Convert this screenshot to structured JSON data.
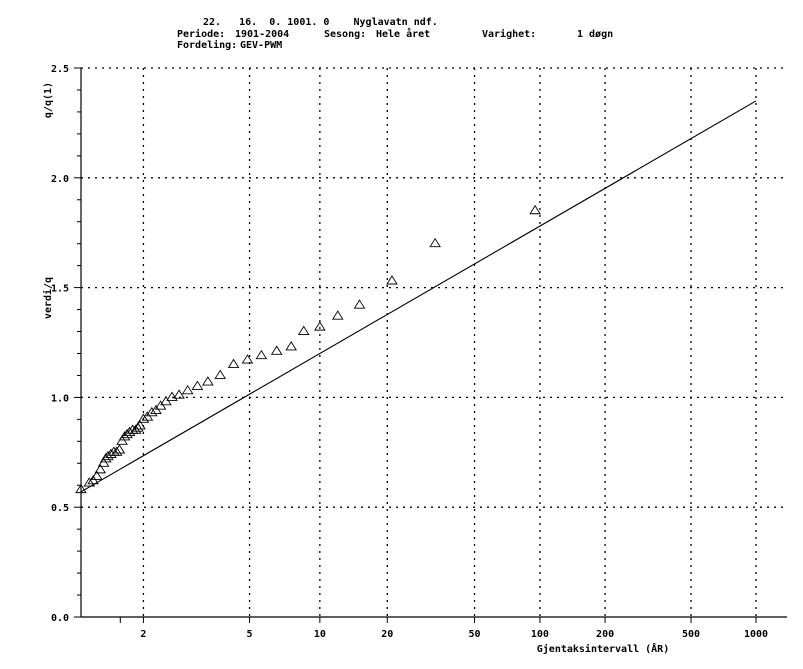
{
  "header": {
    "line1": "22.   16.  0. 1001. 0    Nyglavatn ndf.",
    "periode_label": "Periode:",
    "periode_value": "1901-2004",
    "sesong_label": "Sesong:",
    "sesong_value": "Hele året",
    "varighet_label": "Varighet:",
    "varighet_value": "1 døgn",
    "fordeling_label": "Fordeling:",
    "fordeling_value": "GEV-PWM"
  },
  "chart_data": {
    "type": "scatter",
    "title": "",
    "xlabel": "Gjentaksintervall (ÅR)",
    "ylabel_top": "q/q(1)",
    "ylabel": "verdi/q",
    "x_scale": "gumbel-reduced-variate",
    "xlim": [
      1.35,
      1000
    ],
    "ylim": [
      0,
      2.5
    ],
    "grid": true,
    "x_ticks": [
      2,
      5,
      10,
      20,
      50,
      100,
      200,
      500,
      1000
    ],
    "x_tick_labels": [
      "2",
      "5",
      "10",
      "20",
      "50",
      "100",
      "200",
      "500",
      "1000"
    ],
    "y_ticks": [
      0.0,
      0.5,
      1.0,
      1.5,
      2.0,
      2.5
    ],
    "y_tick_labels": [
      "0.0",
      "0.5",
      "1.0",
      "1.5",
      "2.0",
      "2.5"
    ],
    "fitted_line": {
      "name": "GEV-PWM",
      "x": [
        1.35,
        1000
      ],
      "y": [
        0.57,
        2.35
      ]
    },
    "observations": {
      "marker": "triangle",
      "x": [
        1.35,
        1.41,
        1.44,
        1.47,
        1.5,
        1.53,
        1.55,
        1.57,
        1.6,
        1.63,
        1.66,
        1.69,
        1.72,
        1.75,
        1.78,
        1.81,
        1.85,
        1.89,
        1.92,
        1.95,
        2.0,
        2.06,
        2.13,
        2.2,
        2.28,
        2.38,
        2.5,
        2.65,
        2.85,
        3.1,
        3.4,
        3.8,
        4.3,
        4.9,
        5.6,
        6.5,
        7.5,
        8.5,
        10.0,
        12.0,
        15.0,
        21.0,
        33.0,
        95.0
      ],
      "y": [
        0.58,
        0.61,
        0.62,
        0.64,
        0.67,
        0.7,
        0.72,
        0.73,
        0.74,
        0.75,
        0.75,
        0.76,
        0.8,
        0.82,
        0.83,
        0.84,
        0.85,
        0.85,
        0.86,
        0.87,
        0.9,
        0.91,
        0.93,
        0.94,
        0.96,
        0.98,
        1.0,
        1.01,
        1.03,
        1.05,
        1.07,
        1.1,
        1.15,
        1.17,
        1.19,
        1.21,
        1.23,
        1.3,
        1.32,
        1.37,
        1.42,
        1.53,
        1.7,
        1.85
      ]
    }
  }
}
